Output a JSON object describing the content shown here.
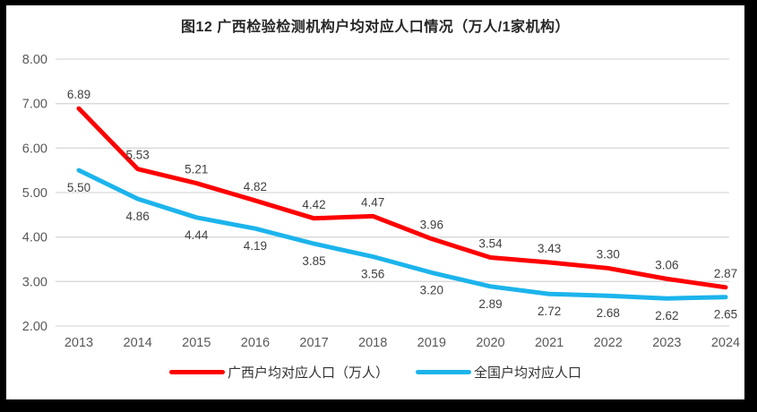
{
  "frame": {
    "border_color": "#000000",
    "background_color": "#ffffff"
  },
  "chart_data": {
    "type": "line",
    "title": "图12 广西检验检测机构户均对应人口情况（万人/1家机构）",
    "categories": [
      "2013",
      "2014",
      "2015",
      "2016",
      "2017",
      "2018",
      "2019",
      "2020",
      "2021",
      "2022",
      "2023",
      "2024"
    ],
    "series": [
      {
        "name": "广西户均对应人口（万人）",
        "color": "#fe0000",
        "values": [
          6.89,
          5.53,
          5.21,
          4.82,
          4.42,
          4.47,
          3.96,
          3.54,
          3.43,
          3.3,
          3.06,
          2.87
        ],
        "label_position": "above"
      },
      {
        "name": "全国户均对应人口",
        "color": "#1cb4ec",
        "values": [
          5.5,
          4.86,
          4.44,
          4.19,
          3.85,
          3.56,
          3.2,
          2.89,
          2.72,
          2.68,
          2.62,
          2.65
        ],
        "label_position": "below"
      }
    ],
    "xlabel": "",
    "ylabel": "",
    "ylim": [
      2.0,
      8.0
    ],
    "ytick_step": 1.0,
    "ytick_labels": [
      "2.00",
      "3.00",
      "4.00",
      "5.00",
      "6.00",
      "7.00",
      "8.00"
    ],
    "grid": true,
    "gridline_color": "#d9d9d9",
    "tick_label_color": "#595959",
    "data_label_color": "#404040",
    "legend_position": "bottom",
    "data_labels_shown": true
  }
}
